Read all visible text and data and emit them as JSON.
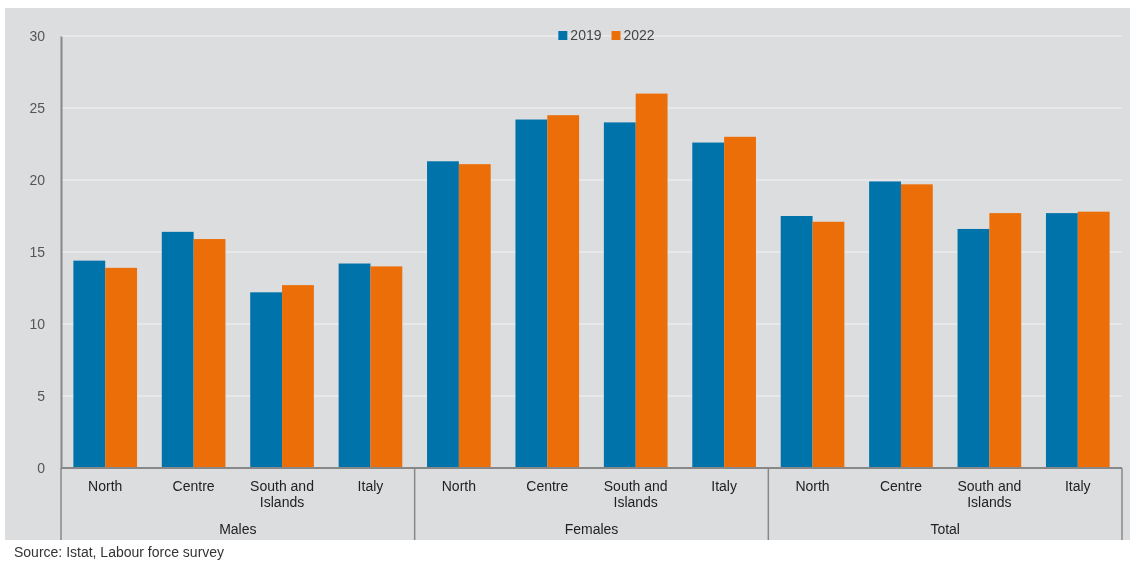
{
  "chart_data": {
    "type": "bar",
    "categories": [
      "North",
      "Centre",
      "South and Islands",
      "Italy",
      "North",
      "Centre",
      "South and Islands",
      "Italy",
      "North",
      "Centre",
      "South and Islands",
      "Italy"
    ],
    "series": [
      {
        "name": "2019",
        "color": "#0073aa",
        "values": [
          14.4,
          16.4,
          12.2,
          14.2,
          21.3,
          24.2,
          24.0,
          22.6,
          17.5,
          19.9,
          16.6,
          17.7
        ]
      },
      {
        "name": "2022",
        "color": "#eb6e08",
        "values": [
          13.9,
          15.9,
          12.7,
          14.0,
          21.1,
          24.5,
          26.0,
          23.0,
          17.1,
          19.7,
          17.7,
          17.8
        ]
      }
    ],
    "ylim": [
      0,
      30
    ],
    "yticks": [
      0,
      5,
      10,
      15,
      20,
      25,
      30
    ],
    "grid": "y",
    "legend": "top",
    "annotations": [
      "Males",
      "Females",
      "Total",
      "Source: Istat, Labour force survey"
    ]
  }
}
